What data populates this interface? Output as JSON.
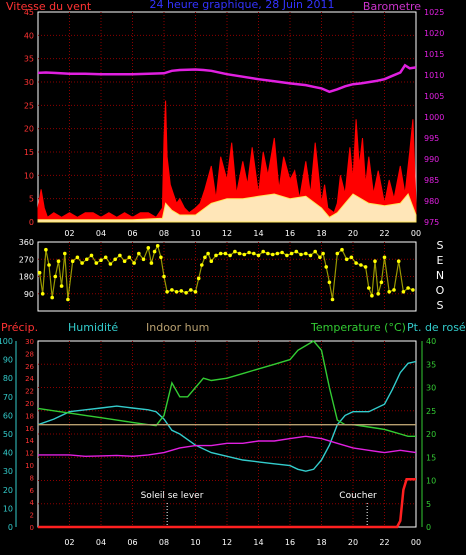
{
  "colors": {
    "background": "#000000",
    "panel_border": "#ffffff",
    "grid": "#8b0000",
    "wind": "#ff0000",
    "wind_avg": "#ffff66",
    "wind_gust_fill": "#ffffcc",
    "pressure": "#e020e0",
    "direction": "#ffff00",
    "humidity": "#33cccc",
    "indoor_hum": "#b8a070",
    "temperature": "#33cc33",
    "dew_point": "#00bbbb",
    "precip": "#ff2020",
    "title": "#3333ff",
    "pressure_title": "#cc33cc",
    "axis_text": "#ffffff",
    "tick_text_wind": "#ff3333",
    "tick_text_baro": "#e020e0",
    "tick_text_hum": "#33cccc",
    "tick_text_temp": "#33cc33",
    "tick_text_precip": "#ff3333",
    "tick_text_dir": "#ffffff",
    "sun_marker": "#ffffff"
  },
  "header": {
    "wind_label": "Vitesse du vent",
    "title": "24 heure graphique, 28 Juin 2011",
    "baro_label": "Barometre"
  },
  "dir_letters": [
    "S",
    "E",
    "N",
    "O",
    "S"
  ],
  "bottom_labels": {
    "precip": "Précip.",
    "humidity": "Humidité",
    "indoor_hum": "Indoor hum",
    "temperature": "Temperature (°C)",
    "dew_point": "Pt. de rosée"
  },
  "sun": {
    "rise_label": "Soleil se lever",
    "set_label": "Coucher",
    "rise_time": 8.2,
    "set_time": 20.9
  },
  "chart_data": [
    {
      "type": "line",
      "name": "wind_pressure",
      "title": "24 heure graphique, 28 Juin 2011",
      "x_range": [
        0,
        24
      ],
      "x_tick_labels": [
        "02",
        "04",
        "06",
        "08",
        "10",
        "12",
        "14",
        "16",
        "18",
        "20",
        "22",
        "00"
      ],
      "y_left_label": "Vitesse du vent",
      "y_left_range": [
        0,
        45
      ],
      "y_left_ticks": [
        "0",
        "5",
        "10",
        "15",
        "20",
        "25",
        "30",
        "35",
        "40",
        "45"
      ],
      "y_right_label": "Barometre",
      "y_right_range": [
        975,
        1025
      ],
      "y_right_ticks": [
        "975",
        "980",
        "985",
        "990",
        "995",
        "1000",
        "1005",
        "1010",
        "1015",
        "1020",
        "1025"
      ],
      "series": [
        {
          "name": "Barometre",
          "axis": "right",
          "x": [
            0,
            0.5,
            1,
            2,
            3,
            4,
            5,
            6,
            7,
            8,
            8.5,
            9,
            10,
            10.5,
            11,
            12,
            13,
            14,
            15,
            16,
            17,
            17.5,
            18,
            18.5,
            19,
            19.5,
            20,
            20.5,
            21,
            21.5,
            22,
            22.5,
            23,
            23.3,
            23.6,
            24
          ],
          "values": [
            1010.5,
            1010.6,
            1010.5,
            1010.3,
            1010.3,
            1010.2,
            1010.2,
            1010.2,
            1010.3,
            1010.4,
            1011.0,
            1011.2,
            1011.3,
            1011.2,
            1011.0,
            1010.2,
            1009.6,
            1009.0,
            1008.5,
            1008.0,
            1007.6,
            1007.2,
            1006.8,
            1006.0,
            1006.6,
            1007.3,
            1007.8,
            1008.0,
            1008.3,
            1008.6,
            1009.0,
            1009.8,
            1010.6,
            1012.3,
            1011.6,
            1011.8
          ]
        },
        {
          "name": "Vitesse du vent",
          "axis": "left",
          "x": [
            0,
            0.2,
            0.4,
            0.6,
            1,
            1.5,
            2,
            2.5,
            3,
            3.5,
            4,
            4.5,
            5,
            5.5,
            6,
            6.5,
            7,
            7.5,
            7.9,
            8.0,
            8.1,
            8.2,
            8.4,
            8.6,
            8.8,
            9,
            9.3,
            9.6,
            10,
            10.3,
            10.6,
            11,
            11.3,
            11.6,
            12,
            12.3,
            12.6,
            13,
            13.3,
            13.6,
            14,
            14.3,
            14.6,
            15,
            15.3,
            15.6,
            16,
            16.3,
            16.6,
            17,
            17.3,
            17.6,
            18,
            18.2,
            18.4,
            18.8,
            19,
            19.2,
            19.5,
            19.8,
            20,
            20.2,
            20.4,
            20.6,
            20.8,
            21,
            21.3,
            21.6,
            22,
            22.3,
            22.6,
            23,
            23.3,
            23.6,
            23.8,
            24
          ],
          "values": [
            3,
            7,
            3,
            1,
            2,
            1,
            2,
            1,
            2,
            2,
            1,
            2,
            1,
            2,
            1,
            2,
            2,
            1,
            3,
            18,
            26,
            14,
            8,
            6,
            4,
            5,
            3,
            2,
            3,
            4,
            7,
            12,
            5,
            14,
            9,
            17,
            6,
            13,
            8,
            16,
            6,
            15,
            10,
            18,
            7,
            14,
            9,
            11,
            5,
            13,
            6,
            17,
            4,
            8,
            3,
            2,
            4,
            10,
            6,
            16,
            9,
            22,
            12,
            18,
            8,
            14,
            6,
            11,
            4,
            9,
            5,
            12,
            6,
            15,
            22,
            4
          ]
        },
        {
          "name": "Vent moyen",
          "axis": "left",
          "x": [
            0,
            2,
            4,
            6,
            7.9,
            8.1,
            8.5,
            9,
            10,
            11,
            12,
            13,
            14,
            15,
            16,
            17,
            18,
            18.5,
            19,
            19.5,
            20,
            20.5,
            21,
            22,
            23,
            23.5,
            24
          ],
          "values": [
            0.5,
            0.5,
            0.5,
            0.5,
            0.8,
            4,
            2.5,
            1.5,
            1.5,
            4,
            5,
            5,
            5.5,
            6,
            5,
            5.5,
            3,
            1,
            2,
            4,
            6,
            5,
            4,
            3.5,
            4,
            6,
            1.5
          ]
        }
      ]
    },
    {
      "type": "scatter",
      "name": "wind_direction",
      "x_range": [
        0,
        24
      ],
      "y_range": [
        0,
        360
      ],
      "y_ticks": [
        "90",
        "180",
        "270",
        "360"
      ],
      "points_x": [
        0.1,
        0.3,
        0.5,
        0.7,
        0.9,
        1.1,
        1.3,
        1.5,
        1.7,
        1.9,
        2.2,
        2.5,
        2.8,
        3.1,
        3.4,
        3.7,
        4.0,
        4.3,
        4.6,
        4.9,
        5.2,
        5.5,
        5.8,
        6.1,
        6.4,
        6.7,
        7.0,
        7.2,
        7.4,
        7.6,
        7.8,
        8.0,
        8.2,
        8.5,
        8.8,
        9.1,
        9.4,
        9.7,
        10.0,
        10.2,
        10.4,
        10.6,
        10.8,
        11.0,
        11.3,
        11.6,
        11.9,
        12.2,
        12.5,
        12.8,
        13.1,
        13.4,
        13.7,
        14.0,
        14.3,
        14.6,
        14.9,
        15.2,
        15.5,
        15.8,
        16.1,
        16.4,
        16.7,
        17.0,
        17.3,
        17.6,
        17.9,
        18.1,
        18.3,
        18.5,
        18.7,
        19.0,
        19.3,
        19.6,
        19.9,
        20.2,
        20.5,
        20.8,
        21.0,
        21.2,
        21.4,
        21.6,
        21.8,
        22.0,
        22.3,
        22.6,
        22.9,
        23.2,
        23.5,
        23.8
      ],
      "points_y": [
        200,
        90,
        320,
        240,
        70,
        180,
        260,
        130,
        300,
        60,
        260,
        280,
        250,
        270,
        290,
        250,
        265,
        280,
        245,
        270,
        290,
        260,
        280,
        250,
        300,
        270,
        330,
        250,
        310,
        340,
        280,
        180,
        100,
        110,
        100,
        105,
        95,
        110,
        100,
        170,
        240,
        280,
        300,
        260,
        290,
        300,
        300,
        290,
        310,
        300,
        295,
        305,
        300,
        290,
        310,
        300,
        295,
        300,
        305,
        290,
        300,
        310,
        295,
        300,
        290,
        310,
        280,
        300,
        230,
        150,
        60,
        300,
        320,
        270,
        280,
        250,
        240,
        230,
        120,
        80,
        260,
        90,
        150,
        280,
        100,
        110,
        260,
        100,
        120,
        110
      ]
    },
    {
      "type": "line",
      "name": "humidity_temperature",
      "x_range": [
        0,
        24
      ],
      "y_left_outer_label": "Humidité",
      "y_left_outer_range": [
        0,
        100
      ],
      "y_left_outer_ticks": [
        "0",
        "10",
        "20",
        "30",
        "40",
        "50",
        "60",
        "70",
        "80",
        "90",
        "100"
      ],
      "y_left_inner_label": "Précip.",
      "y_left_inner_range": [
        0,
        30
      ],
      "y_left_inner_ticks": [
        "0",
        "2",
        "4",
        "6",
        "8",
        "10",
        "12",
        "14",
        "16",
        "18",
        "20",
        "22",
        "24",
        "26",
        "28",
        "30"
      ],
      "y_right_label": "Temperature (°C)",
      "y_right_range": [
        0,
        40
      ],
      "y_right_ticks": [
        "0",
        "5",
        "10",
        "15",
        "20",
        "25",
        "30",
        "35",
        "40"
      ],
      "series": [
        {
          "name": "Humidité",
          "axis": "left_outer",
          "x": [
            0,
            1,
            2,
            3,
            4,
            5,
            6,
            7,
            7.5,
            8,
            8.5,
            9,
            9.5,
            10,
            11,
            12,
            13,
            14,
            15,
            16,
            16.5,
            17,
            17.5,
            18,
            18.5,
            19,
            19.5,
            20,
            21,
            22,
            22.5,
            23,
            23.5,
            24
          ],
          "values": [
            55,
            58,
            62,
            63,
            64,
            65,
            64,
            63,
            62,
            58,
            52,
            50,
            47,
            44,
            40,
            38,
            36,
            35,
            34,
            33,
            31,
            30,
            31,
            36,
            44,
            55,
            60,
            62,
            62,
            66,
            74,
            83,
            88,
            89
          ]
        },
        {
          "name": "Temperature (°C)",
          "axis": "right",
          "x": [
            0,
            1,
            2,
            3,
            4,
            5,
            6,
            7,
            7.5,
            8,
            8.5,
            9,
            9.5,
            10,
            10.5,
            11,
            12,
            13,
            14,
            15,
            16,
            16.5,
            17,
            17.5,
            18,
            18.5,
            19,
            19.5,
            20,
            21,
            22,
            22.5,
            23,
            23.5,
            24
          ],
          "values": [
            25.5,
            25,
            24.5,
            24,
            23.5,
            23,
            22.5,
            22,
            21.8,
            24,
            31,
            28,
            28,
            30,
            32,
            31.5,
            32,
            33,
            34,
            35,
            36,
            38,
            39,
            40,
            38,
            30,
            23,
            22,
            22,
            21.5,
            21,
            20.5,
            20,
            19.5,
            19.5
          ]
        },
        {
          "name": "Pt. de rosée",
          "axis": "right",
          "x": [
            0,
            1,
            2,
            3,
            4,
            5,
            6,
            7,
            8,
            9,
            10,
            11,
            12,
            13,
            14,
            15,
            16,
            17,
            18,
            19,
            20,
            21,
            22,
            23,
            24
          ],
          "values": [
            15.5,
            15.5,
            15.5,
            15.2,
            15.3,
            15.4,
            15.2,
            15.5,
            16,
            17,
            17.5,
            17.5,
            18,
            18,
            18.5,
            18.5,
            19,
            19.5,
            19,
            18,
            17,
            16.5,
            16,
            16.5,
            16
          ]
        },
        {
          "name": "Indoor hum",
          "axis": "left_outer",
          "x": [
            0,
            24
          ],
          "values": [
            55,
            55
          ]
        },
        {
          "name": "Précip.",
          "axis": "left_inner",
          "x": [
            0,
            21,
            22,
            22.8,
            23.0,
            23.2,
            23.4,
            24
          ],
          "values": [
            0,
            0,
            0,
            0,
            1,
            6,
            7.7,
            7.7
          ]
        }
      ]
    }
  ]
}
